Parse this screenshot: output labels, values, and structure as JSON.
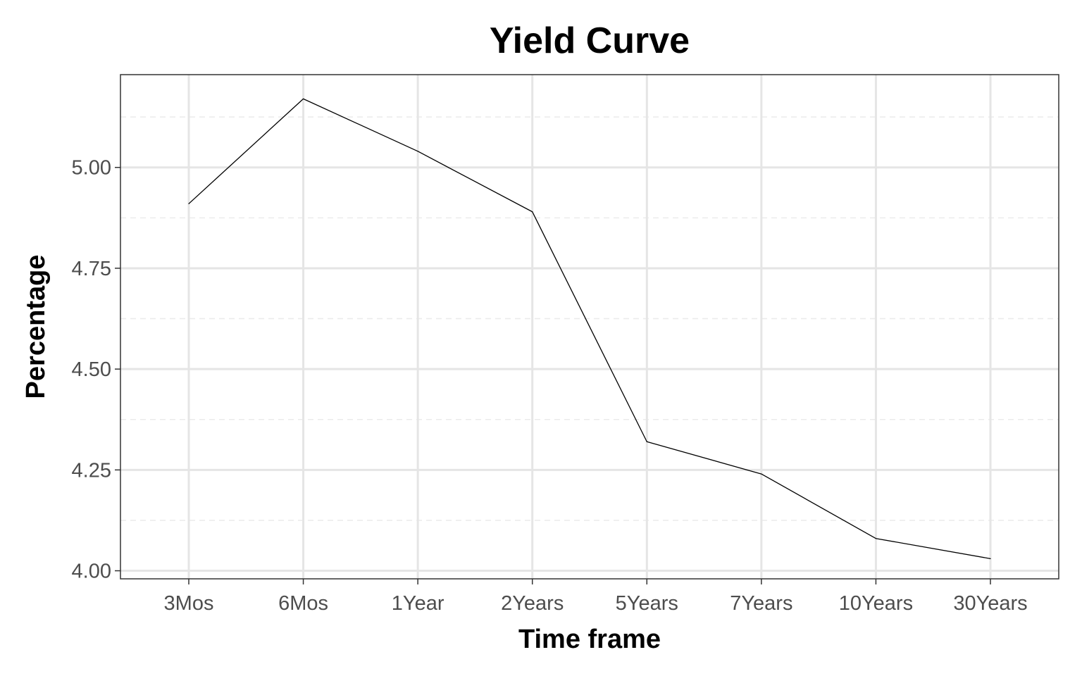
{
  "chart_data": {
    "type": "line",
    "title": "Yield Curve",
    "xlabel": "Time frame",
    "ylabel": "Percentage",
    "categories": [
      "3Mos",
      "6Mos",
      "1Year",
      "2Years",
      "5Years",
      "7Years",
      "10Years",
      "30Years"
    ],
    "series": [
      {
        "values": [
          4.91,
          5.17,
          5.04,
          4.89,
          4.32,
          4.24,
          4.08,
          4.03
        ]
      }
    ],
    "ylim": [
      3.98,
      5.23
    ],
    "yticks": [
      4.0,
      4.25,
      4.5,
      4.75,
      5.0
    ],
    "ytick_labels": [
      "4.00",
      "4.25",
      "4.50",
      "4.75",
      "5.00"
    ],
    "grid": true,
    "minor_grid": true,
    "legend": "none",
    "colors": {
      "line": "#000000",
      "grid_major": "#e5e5e5",
      "grid_minor": "#ebebeb",
      "panel_border": "#333333",
      "tick_label": "#4d4d4d"
    }
  }
}
